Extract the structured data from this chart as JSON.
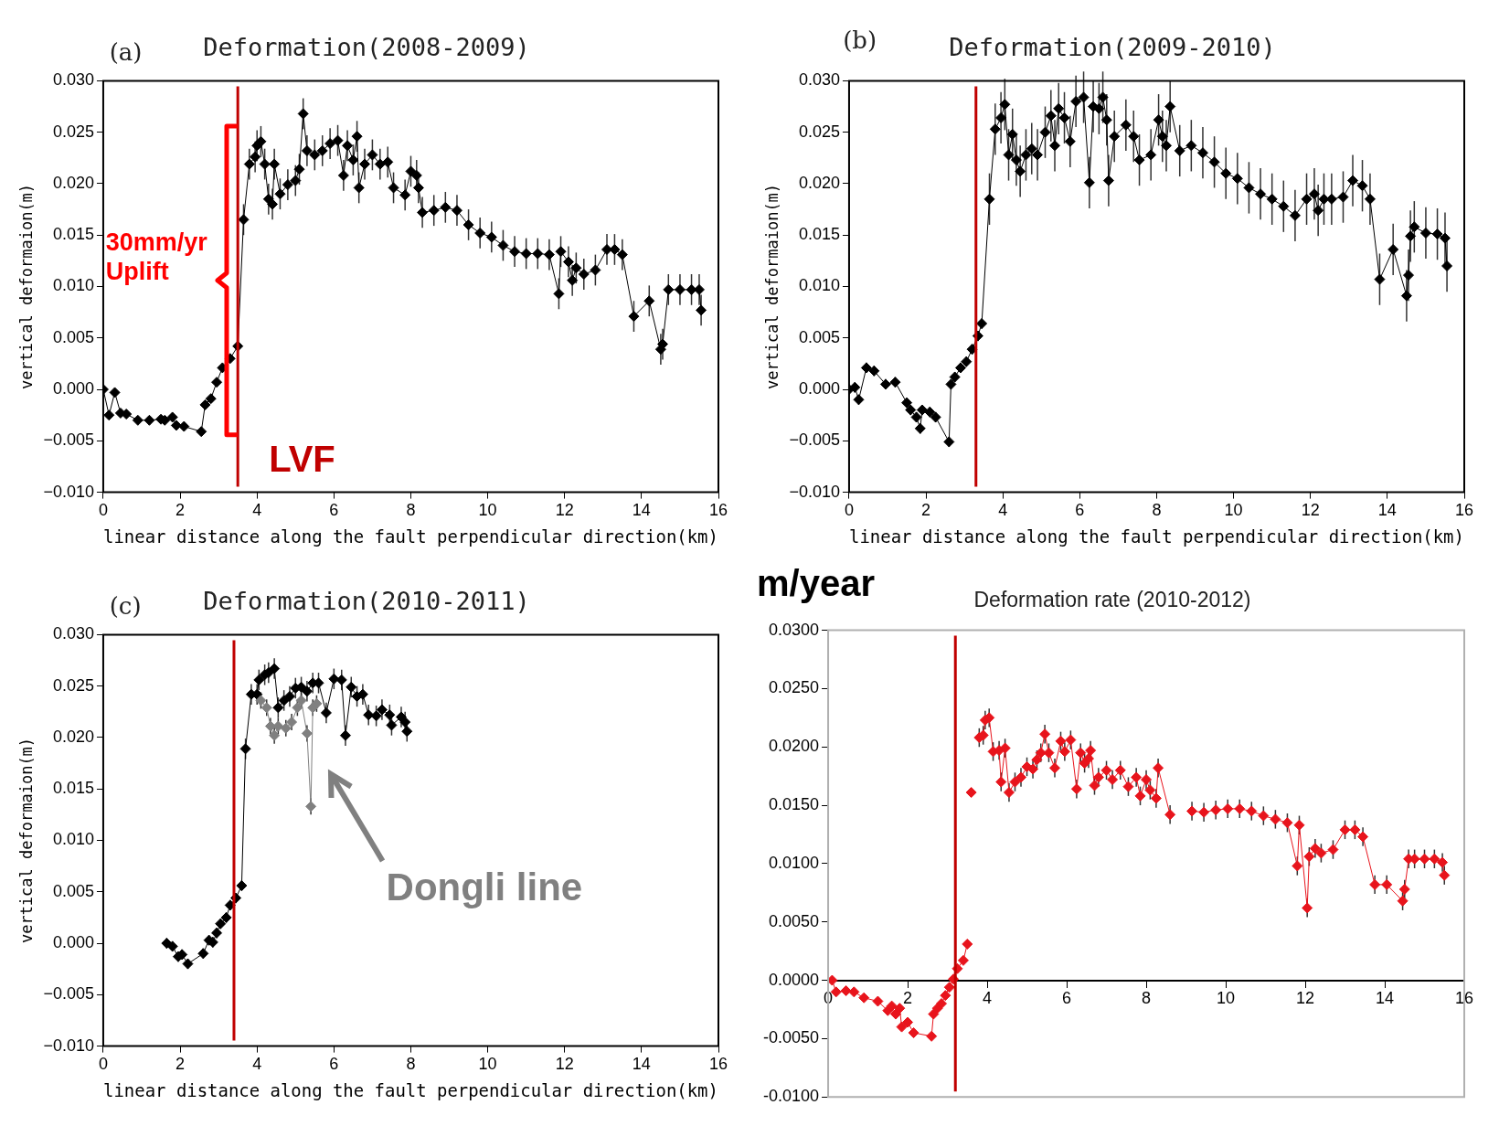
{
  "chart_data": [
    {
      "type": "line",
      "title": "Deformation(2008-2009)",
      "xlabel": "linear distance along the fault perpendicular direction(km)",
      "ylabel": "vertical deformaion(m)",
      "annotations": [
        "(a)",
        "30mm/yr Uplift"
      ],
      "marker": "diamond",
      "xlim": [
        0,
        16
      ],
      "xticks": [
        0,
        2,
        4,
        6,
        8,
        10,
        12,
        14,
        16
      ],
      "ylim": [
        -0.01,
        0.03
      ],
      "yticks": [
        {
          "value": -0.01,
          "label": "−0.010"
        },
        {
          "value": -0.005,
          "label": "−0.005"
        },
        {
          "value": 0,
          "label": "0.000"
        },
        {
          "value": 0.005,
          "label": "0.005"
        },
        {
          "value": 0.01,
          "label": "0.010"
        },
        {
          "value": 0.015,
          "label": "0.015"
        },
        {
          "value": 0.02,
          "label": "0.020"
        },
        {
          "value": 0.025,
          "label": "0.025"
        },
        {
          "value": 0.03,
          "label": "0.030"
        }
      ],
      "ref_lines": [
        {
          "axis": "x",
          "value": 3.5,
          "label": "LVF",
          "color": "#c00000"
        }
      ],
      "series": [
        {
          "color": "#000000",
          "x": [
            0,
            0.15,
            0.3,
            0.45,
            0.6,
            0.9,
            1.2,
            1.5,
            1.6,
            1.8,
            1.9,
            2.1,
            2.55,
            2.65,
            2.8,
            2.95,
            3.1,
            3.3,
            3.5,
            3.65,
            3.8,
            3.95,
            4.0,
            4.1,
            4.2,
            4.3,
            4.4,
            4.45,
            4.6,
            4.8,
            5.0,
            5.1,
            5.2,
            5.3,
            5.5,
            5.7,
            5.9,
            6.1,
            6.25,
            6.35,
            6.5,
            6.6,
            6.65,
            6.8,
            7.0,
            7.2,
            7.4,
            7.55,
            7.85,
            8.0,
            8.15,
            8.2,
            8.3,
            8.6,
            8.9,
            9.2,
            9.5,
            9.8,
            10.1,
            10.4,
            10.7,
            11.0,
            11.3,
            11.6,
            11.85,
            11.9,
            12.1,
            12.2,
            12.3,
            12.5,
            12.8,
            13.1,
            13.3,
            13.5,
            13.8,
            14.2,
            14.5,
            14.55,
            14.7,
            15.0,
            15.3,
            15.5,
            15.55
          ],
          "values": [
            0,
            -0.0025,
            -0.0003,
            -0.0023,
            -0.0024,
            -0.003,
            -0.003,
            -0.0029,
            -0.003,
            -0.0027,
            -0.0035,
            -0.0036,
            -0.0041,
            -0.0015,
            -0.0009,
            0.0007,
            0.0021,
            0.003,
            0.0042,
            0.0165,
            0.0219,
            0.0226,
            0.0237,
            0.0241,
            0.0219,
            0.0185,
            0.018,
            0.0219,
            0.019,
            0.0199,
            0.0203,
            0.0214,
            0.0268,
            0.0232,
            0.0228,
            0.0232,
            0.0239,
            0.0242,
            0.0208,
            0.0237,
            0.0223,
            0.0246,
            0.0196,
            0.0219,
            0.0228,
            0.0219,
            0.0221,
            0.0196,
            0.0189,
            0.0212,
            0.0208,
            0.0196,
            0.0172,
            0.0174,
            0.0177,
            0.0174,
            0.016,
            0.0152,
            0.0148,
            0.014,
            0.0134,
            0.0132,
            0.0132,
            0.0131,
            0.0093,
            0.0134,
            0.0124,
            0.0106,
            0.0118,
            0.0112,
            0.0116,
            0.0136,
            0.0136,
            0.0131,
            0.0071,
            0.0086,
            0.0039,
            0.0044,
            0.0097,
            0.0097,
            0.0097,
            0.0097,
            0.0077
          ],
          "errors": [
            null,
            null,
            null,
            null,
            null,
            null,
            null,
            null,
            null,
            null,
            null,
            null,
            null,
            null,
            null,
            null,
            null,
            null,
            null,
            0.0015,
            0.0015,
            0.0015,
            0.0015,
            0.0015,
            0.0015,
            0.0015,
            0.0015,
            0.0015,
            0.0015,
            0.0015,
            0.0015,
            0.0015,
            0.0015,
            0.0015,
            0.0015,
            0.0015,
            0.0015,
            0.0015,
            0.0015,
            0.0015,
            0.0015,
            0.0015,
            0.0015,
            0.0015,
            0.0015,
            0.0015,
            0.0015,
            0.0015,
            0.0015,
            0.0015,
            0.0015,
            0.0015,
            0.0015,
            0.0015,
            0.0015,
            0.0015,
            0.0015,
            0.0015,
            0.0015,
            0.0015,
            0.0015,
            0.0015,
            0.0015,
            0.0015,
            0.0015,
            0.0015,
            0.0015,
            0.0015,
            0.0015,
            0.0015,
            0.0015,
            0.0015,
            0.0015,
            0.0015,
            0.0015,
            0.0015,
            0.0015,
            0.0015,
            0.0015,
            0.0015,
            0.0015,
            0.0015,
            0.0015
          ]
        }
      ]
    },
    {
      "type": "line",
      "title": "Deformation(2009-2010)",
      "xlabel": "linear distance along the fault perpendicular direction(km)",
      "ylabel": "vertical deformaion(m)",
      "annotations": [
        "(b)"
      ],
      "marker": "diamond",
      "xlim": [
        0,
        16
      ],
      "xticks": [
        0,
        2,
        4,
        6,
        8,
        10,
        12,
        14,
        16
      ],
      "ylim": [
        -0.01,
        0.03
      ],
      "yticks": [
        {
          "value": -0.01,
          "label": "−0.010"
        },
        {
          "value": -0.005,
          "label": "−0.005"
        },
        {
          "value": 0,
          "label": "0.000"
        },
        {
          "value": 0.005,
          "label": "0.005"
        },
        {
          "value": 0.01,
          "label": "0.010"
        },
        {
          "value": 0.015,
          "label": "0.015"
        },
        {
          "value": 0.02,
          "label": "0.020"
        },
        {
          "value": 0.025,
          "label": "0.025"
        },
        {
          "value": 0.03,
          "label": "0.030"
        }
      ],
      "ref_lines": [
        {
          "axis": "x",
          "value": 3.3,
          "color": "#c00000"
        }
      ],
      "series": [
        {
          "color": "#000000",
          "x": [
            0,
            0.15,
            0.25,
            0.45,
            0.65,
            0.95,
            1.2,
            1.5,
            1.6,
            1.75,
            1.85,
            1.9,
            2.1,
            2.25,
            2.6,
            2.65,
            2.75,
            2.9,
            3.05,
            3.2,
            3.35,
            3.45,
            3.65,
            3.8,
            3.95,
            4.05,
            4.15,
            4.25,
            4.35,
            4.45,
            4.6,
            4.75,
            4.9,
            5.1,
            5.25,
            5.35,
            5.45,
            5.6,
            5.75,
            5.9,
            6.1,
            6.25,
            6.35,
            6.5,
            6.6,
            6.7,
            6.75,
            6.9,
            7.2,
            7.4,
            7.55,
            7.85,
            8.05,
            8.15,
            8.25,
            8.35,
            8.6,
            8.9,
            9.2,
            9.5,
            9.8,
            10.1,
            10.4,
            10.7,
            11.0,
            11.3,
            11.6,
            11.9,
            12.1,
            12.2,
            12.35,
            12.55,
            12.85,
            13.1,
            13.35,
            13.55,
            13.8,
            14.15,
            14.5,
            14.55,
            14.6,
            14.7,
            15.0,
            15.3,
            15.5,
            15.55
          ],
          "values": [
            0,
            0.0002,
            -0.001,
            0.0021,
            0.0018,
            0.0005,
            0.0007,
            -0.0013,
            -0.002,
            -0.0027,
            -0.0038,
            -0.002,
            -0.0022,
            -0.0027,
            -0.0051,
            0.0005,
            0.0012,
            0.0021,
            0.0027,
            0.0039,
            0.0052,
            0.0064,
            0.0185,
            0.0253,
            0.0264,
            0.0277,
            0.0228,
            0.0248,
            0.0223,
            0.0212,
            0.0228,
            0.0234,
            0.0228,
            0.025,
            0.0266,
            0.0237,
            0.0273,
            0.0264,
            0.0241,
            0.028,
            0.0284,
            0.0201,
            0.0275,
            0.0273,
            0.0284,
            0.0262,
            0.0203,
            0.0246,
            0.0257,
            0.0246,
            0.0223,
            0.0228,
            0.0262,
            0.0246,
            0.0237,
            0.0275,
            0.0232,
            0.0237,
            0.023,
            0.0221,
            0.021,
            0.0205,
            0.0196,
            0.019,
            0.0185,
            0.0178,
            0.0169,
            0.0185,
            0.019,
            0.0174,
            0.0185,
            0.0185,
            0.0187,
            0.0203,
            0.0198,
            0.0185,
            0.0107,
            0.0136,
            0.0091,
            0.0111,
            0.0149,
            0.0158,
            0.0152,
            0.0151,
            0.0147,
            0.012
          ],
          "errors": [
            0.0005,
            0.0005,
            0.0005,
            0.0005,
            0.0005,
            0.0005,
            0.0005,
            0.0005,
            0.0005,
            0.0005,
            0.0005,
            0.0005,
            0.0005,
            0.0005,
            0.0005,
            0.0005,
            0.0005,
            0.0005,
            0.0005,
            0.0005,
            0.0005,
            0.0005,
            0.0025,
            0.0025,
            0.0025,
            0.0025,
            0.0025,
            0.0025,
            0.0025,
            0.0025,
            0.0025,
            0.0025,
            0.0025,
            0.0025,
            0.0025,
            0.0025,
            0.0025,
            0.0025,
            0.0025,
            0.0025,
            0.0025,
            0.0025,
            0.0025,
            0.0025,
            0.0025,
            0.0025,
            0.0025,
            0.0025,
            0.0025,
            0.0025,
            0.0025,
            0.0025,
            0.0025,
            0.0025,
            0.0025,
            0.0025,
            0.0025,
            0.0025,
            0.0025,
            0.0025,
            0.0025,
            0.0025,
            0.0025,
            0.0025,
            0.0025,
            0.0025,
            0.0025,
            0.0025,
            0.0025,
            0.0025,
            0.0025,
            0.0025,
            0.0025,
            0.0025,
            0.0025,
            0.0025,
            0.0025,
            0.0025,
            0.0025,
            0.0025,
            0.0025,
            0.0025,
            0.0025,
            0.0025,
            0.0025,
            0.0025
          ]
        }
      ]
    },
    {
      "type": "line",
      "title": "Deformation(2010-2011)",
      "xlabel": "linear distance along the fault perpendicular direction(km)",
      "ylabel": "vertical deformaion(m)",
      "annotations": [
        "(c)"
      ],
      "marker": "diamond",
      "xlim": [
        0,
        16
      ],
      "xticks": [
        0,
        2,
        4,
        6,
        8,
        10,
        12,
        14,
        16
      ],
      "ylim": [
        -0.01,
        0.03
      ],
      "yticks": [
        {
          "value": -0.01,
          "label": "−0.010"
        },
        {
          "value": -0.005,
          "label": "−0.005"
        },
        {
          "value": 0,
          "label": "0.000"
        },
        {
          "value": 0.005,
          "label": "0.005"
        },
        {
          "value": 0.01,
          "label": "0.010"
        },
        {
          "value": 0.015,
          "label": "0.015"
        },
        {
          "value": 0.02,
          "label": "0.020"
        },
        {
          "value": 0.025,
          "label": "0.025"
        },
        {
          "value": 0.03,
          "label": "0.030"
        }
      ],
      "ref_lines": [
        {
          "axis": "x",
          "value": 3.4,
          "color": "#c00000"
        }
      ],
      "series": [
        {
          "color": "#808080",
          "name": "Dongli line",
          "x": [
            4.1,
            4.25,
            4.35,
            4.45,
            4.55,
            4.75,
            4.9,
            5.05,
            5.15,
            5.3,
            5.4,
            5.45,
            5.55
          ],
          "values": [
            0.0236,
            0.0229,
            0.0211,
            0.0202,
            0.0211,
            0.0209,
            0.0215,
            0.0229,
            0.0236,
            0.0204,
            0.0133,
            0.0229,
            0.0233
          ],
          "errors": [
            0.0008,
            0.0008,
            0.0008,
            0.0008,
            0.0008,
            0.0008,
            0.0008,
            0.0008,
            0.0008,
            0.0008,
            0.0008,
            0.0008,
            0.0008
          ]
        },
        {
          "color": "#000000",
          "x": [
            1.65,
            1.8,
            1.95,
            2.05,
            2.2,
            2.6,
            2.75,
            2.85,
            2.95,
            3.05,
            3.2,
            3.3,
            3.45,
            3.6,
            3.7,
            3.85,
            4.0,
            4.05,
            4.2,
            4.3,
            4.45,
            4.55,
            4.7,
            4.85,
            5.0,
            5.15,
            5.3,
            5.45,
            5.6,
            5.8,
            6.0,
            6.2,
            6.3,
            6.45,
            6.6,
            6.75,
            6.9,
            7.1,
            7.25,
            7.45,
            7.5,
            7.75,
            7.85,
            7.9
          ],
          "values": [
            0,
            -0.0003,
            -0.0013,
            -0.0011,
            -0.002,
            -0.001,
            0.0003,
            0.0001,
            0.001,
            0.0019,
            0.0025,
            0.0037,
            0.0044,
            0.0056,
            0.0189,
            0.0242,
            0.0242,
            0.0256,
            0.0261,
            0.0263,
            0.0267,
            0.0229,
            0.0236,
            0.024,
            0.0248,
            0.0249,
            0.0245,
            0.0253,
            0.0253,
            0.0224,
            0.0257,
            0.0256,
            0.0202,
            0.0249,
            0.024,
            0.0242,
            0.0222,
            0.0221,
            0.0227,
            0.0222,
            0.0212,
            0.022,
            0.0215,
            0.0206
          ],
          "errors": [
            0.0005,
            0.0005,
            0.0005,
            0.0005,
            0.0005,
            0.0005,
            0.0005,
            0.0005,
            0.0005,
            0.0005,
            0.0005,
            0.0005,
            0.0005,
            0.0005,
            0.001,
            0.001,
            0.001,
            0.001,
            0.001,
            0.001,
            0.001,
            0.001,
            0.001,
            0.001,
            0.001,
            0.001,
            0.001,
            0.001,
            0.001,
            0.001,
            0.001,
            0.001,
            0.001,
            0.001,
            0.001,
            0.001,
            0.001,
            0.001,
            0.001,
            0.001,
            0.001,
            0.001,
            0.001,
            0.001
          ]
        }
      ]
    },
    {
      "type": "line",
      "title": "Deformation rate (2010-2012)",
      "ylabel": "m/year",
      "marker": "diamond",
      "xlim": [
        0,
        16
      ],
      "xticks": [
        0,
        2,
        4,
        6,
        8,
        10,
        12,
        14,
        16
      ],
      "ylim": [
        -0.01,
        0.03
      ],
      "yticks": [
        {
          "value": -0.01,
          "label": "-0.0100"
        },
        {
          "value": -0.005,
          "label": "-0.0050"
        },
        {
          "value": 0,
          "label": "0.0000"
        },
        {
          "value": 0.005,
          "label": "0.0050"
        },
        {
          "value": 0.01,
          "label": "0.0100"
        },
        {
          "value": 0.015,
          "label": "0.0150"
        },
        {
          "value": 0.02,
          "label": "0.0200"
        },
        {
          "value": 0.025,
          "label": "0.0250"
        },
        {
          "value": 0.03,
          "label": "0.0300"
        }
      ],
      "ref_lines": [
        {
          "axis": "x",
          "value": 3.2,
          "color": "#c00000"
        }
      ],
      "series": [
        {
          "color": "#e8141c",
          "x": [
            0.1,
            0.2,
            0.45,
            0.65,
            0.9,
            1.25,
            1.5,
            1.6,
            1.7,
            1.8,
            1.85,
            2.0,
            2.15,
            2.6,
            2.65,
            2.75,
            2.85,
            2.95,
            3.05,
            3.15,
            3.25,
            3.4,
            3.5,
            3.55,
            3.6,
            3.7,
            3.8,
            3.9,
            3.95,
            4.05,
            4.15,
            4.3,
            4.35,
            4.45,
            4.55,
            4.7,
            4.85,
            5.0,
            5.15,
            5.25,
            5.35,
            5.45,
            5.55,
            5.7,
            5.85,
            5.95,
            6.1,
            6.25,
            6.35,
            6.45,
            6.55,
            6.6,
            6.7,
            6.8,
            7.0,
            7.15,
            7.35,
            7.55,
            7.75,
            7.85,
            8.0,
            8.1,
            8.25,
            8.3,
            8.6,
            8.85,
            9.15,
            9.45,
            9.75,
            10.05,
            10.35,
            10.65,
            10.95,
            11.25,
            11.55,
            11.8,
            11.85,
            12.05,
            12.1,
            12.25,
            12.4,
            12.7,
            13.0,
            13.25,
            13.45,
            13.75,
            14.05,
            14.45,
            14.5,
            14.6,
            14.75,
            15.0,
            15.25,
            15.45,
            15.5
          ],
          "values": [
            0,
            -0.001,
            -0.0009,
            -0.001,
            -0.0015,
            -0.0018,
            -0.0026,
            -0.0022,
            -0.0029,
            -0.0024,
            -0.004,
            -0.0036,
            -0.0045,
            -0.0048,
            -0.0029,
            -0.0024,
            -0.002,
            -0.0013,
            -0.0006,
            0.0001,
            0.001,
            0.0017,
            0.0031,
            null,
            0.0161,
            null,
            0.0208,
            0.021,
            0.0223,
            0.0225,
            0.0196,
            0.0197,
            0.017,
            0.0199,
            0.0161,
            0.017,
            0.0174,
            0.0183,
            0.0181,
            0.0189,
            0.0195,
            0.0211,
            0.0195,
            0.0182,
            0.0205,
            0.0196,
            0.0206,
            0.0164,
            0.0195,
            0.0186,
            0.019,
            0.0197,
            0.0167,
            0.0174,
            0.018,
            0.0172,
            0.018,
            0.0166,
            0.0174,
            0.0158,
            0.0172,
            0.0163,
            0.0156,
            0.0182,
            0.0142,
            null,
            0.0145,
            0.0144,
            0.0146,
            0.0147,
            0.0147,
            0.0145,
            0.0141,
            0.0138,
            0.0135,
            0.0098,
            0.0133,
            0.0062,
            0.0106,
            0.0113,
            0.0109,
            0.0112,
            0.0129,
            0.0129,
            0.0123,
            0.0082,
            0.0082,
            0.0068,
            0.0078,
            0.0104,
            0.0104,
            0.0104,
            0.0104,
            0.0101,
            0.009
          ],
          "errors": [
            null,
            null,
            null,
            null,
            null,
            null,
            null,
            null,
            null,
            null,
            null,
            null,
            null,
            null,
            null,
            null,
            null,
            null,
            null,
            null,
            null,
            null,
            null,
            null,
            null,
            null,
            0.0008,
            0.0008,
            0.0008,
            0.0008,
            0.0008,
            0.0008,
            0.0008,
            0.0008,
            0.0008,
            0.0008,
            0.0008,
            0.0008,
            0.0008,
            0.0008,
            0.0008,
            0.0008,
            0.0008,
            0.0008,
            0.0008,
            0.0008,
            0.0008,
            0.0008,
            0.0008,
            0.0008,
            0.0008,
            0.0008,
            0.0008,
            0.0008,
            0.0008,
            0.0008,
            0.0008,
            0.0008,
            0.0008,
            0.0008,
            0.0008,
            0.0008,
            0.0008,
            0.0008,
            0.0008,
            null,
            0.0008,
            0.0008,
            0.0008,
            0.0008,
            0.0008,
            0.0008,
            0.0008,
            0.0008,
            0.0008,
            0.0008,
            0.0008,
            0.0008,
            0.0008,
            0.0008,
            0.0008,
            0.0008,
            0.0008,
            0.0008,
            0.0008,
            0.0008,
            0.0008,
            0.0008,
            0.0008,
            0.0008,
            0.0008,
            0.0008,
            0.0008,
            0.0008,
            0.0008
          ]
        }
      ]
    }
  ]
}
